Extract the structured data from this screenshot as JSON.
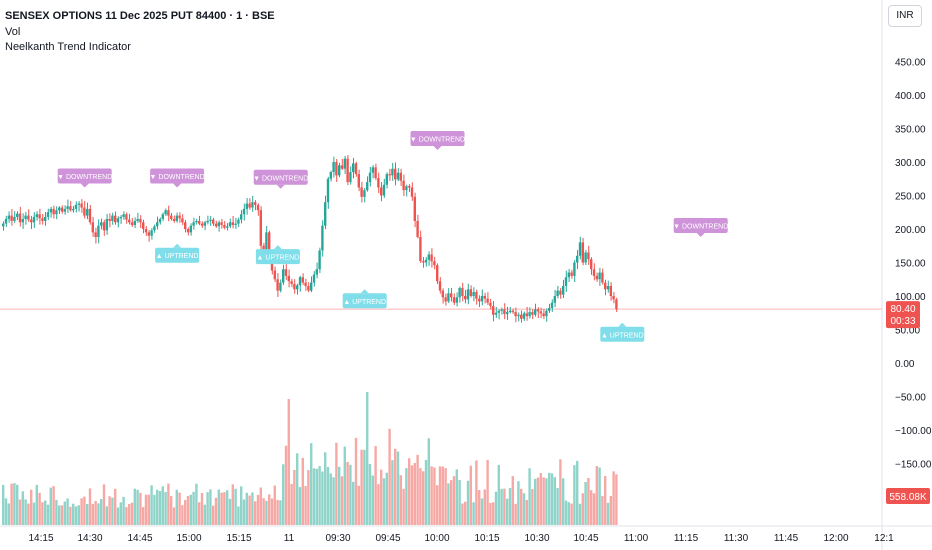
{
  "legend": {
    "title": "SENSEX OPTIONS 11 Dec 2025 PUT 84400 · 1 · BSE",
    "vol_label": "Vol",
    "indicator_label": "Neelkanth Trend Indicator"
  },
  "currency_button": "INR",
  "colors": {
    "up": "#26a69a",
    "down": "#ef5350",
    "vol_up": "#8fd3c9",
    "vol_down": "#f6a8a5",
    "downtrend_tag": "#ce93d8",
    "uptrend_tag": "#80deea",
    "last_price_line": "#ffb3b8"
  },
  "axes": {
    "y_ticks": [
      "450.00",
      "400.00",
      "350.00",
      "300.00",
      "250.00",
      "200.00",
      "150.00",
      "100.00",
      "50.00",
      "0.00",
      "−50.00",
      "−100.00",
      "−150.00"
    ],
    "x_ticks": [
      "14:15",
      "14:30",
      "14:45",
      "15:00",
      "15:15",
      "11",
      "09:30",
      "09:45",
      "10:00",
      "10:15",
      "10:30",
      "10:45",
      "11:00",
      "11:15",
      "11:30",
      "11:45",
      "12:00",
      "12:1"
    ],
    "last_price": "80.40",
    "countdown": "00:33",
    "last_volume": "558.08K"
  },
  "chart_data": {
    "type": "candlestick",
    "title": "SENSEX OPTIONS 11 Dec 2025 PUT 84400 · 1 · BSE",
    "timeframe": "1",
    "y_axis_range": [
      -175,
      470
    ],
    "last_price": 80.4,
    "candles_close": [
      208,
      215,
      220,
      212,
      218,
      223,
      210,
      215,
      220,
      214,
      210,
      218,
      222,
      216,
      212,
      218,
      225,
      230,
      222,
      228,
      232,
      226,
      230,
      234,
      228,
      230,
      236,
      238,
      232,
      220,
      230,
      210,
      195,
      188,
      205,
      210,
      198,
      215,
      212,
      220,
      210,
      216,
      218,
      222,
      214,
      210,
      206,
      212,
      215,
      210,
      200,
      195,
      190,
      198,
      204,
      210,
      215,
      222,
      228,
      220,
      215,
      212,
      220,
      216,
      210,
      200,
      195,
      205,
      210,
      212,
      208,
      205,
      210,
      212,
      214,
      208,
      204,
      210,
      206,
      202,
      204,
      210,
      206,
      208,
      214,
      222,
      230,
      238,
      232,
      240,
      236,
      228,
      175,
      160,
      195,
      150,
      138,
      125,
      108,
      120,
      140,
      130,
      122,
      118,
      110,
      116,
      128,
      120,
      115,
      108,
      120,
      132,
      140,
      168,
      205,
      240,
      275,
      285,
      300,
      280,
      295,
      290,
      305,
      270,
      285,
      298,
      282,
      262,
      248,
      258,
      270,
      284,
      292,
      276,
      262,
      250,
      266,
      282,
      280,
      290,
      274,
      284,
      272,
      258,
      264,
      262,
      248,
      212,
      188,
      152,
      150,
      154,
      162,
      152,
      146,
      122,
      108,
      98,
      92,
      104,
      98,
      90,
      98,
      112,
      100,
      95,
      110,
      100,
      106,
      96,
      92,
      100,
      96,
      90,
      85,
      72,
      75,
      78,
      80,
      73,
      76,
      78,
      76,
      70,
      72,
      66,
      74,
      70,
      76,
      72,
      80,
      77,
      74,
      70,
      78,
      82,
      90,
      100,
      108,
      102,
      115,
      128,
      135,
      130,
      150,
      160,
      180,
      150,
      165,
      155,
      140,
      130,
      125,
      135,
      120,
      110,
      115,
      100,
      95,
      80.4
    ],
    "volume_range": [
      0,
      1000
    ],
    "x_time_labels": [
      "14:15",
      "14:30",
      "14:45",
      "15:00",
      "15:15",
      "11",
      "09:30",
      "09:45",
      "10:00",
      "10:15",
      "10:30",
      "10:45",
      "11:00",
      "11:15",
      "11:30",
      "11:45",
      "12:00",
      "12:1"
    ],
    "signals": [
      {
        "label": "▼ DOWNTREND",
        "type": "down",
        "price": 262,
        "time_index": 29
      },
      {
        "label": "▼ DOWNTREND",
        "type": "down",
        "price": 262,
        "time_index": 62
      },
      {
        "label": "▼ DOWNTREND",
        "type": "down",
        "price": 260,
        "time_index": 99
      },
      {
        "label": "▼ DOWNTREND",
        "type": "down",
        "price": 318,
        "time_index": 155
      },
      {
        "label": "▼ DOWNTREND",
        "type": "down",
        "price": 188,
        "time_index": 249
      },
      {
        "label": "▲ UPTREND",
        "type": "up",
        "price": 178,
        "time_index": 62
      },
      {
        "label": "▲ UPTREND",
        "type": "up",
        "price": 176,
        "time_index": 98
      },
      {
        "label": "▲ UPTREND",
        "type": "up",
        "price": 110,
        "time_index": 129
      },
      {
        "label": "▲ UPTREND",
        "type": "up",
        "price": 60,
        "time_index": 221
      }
    ]
  }
}
